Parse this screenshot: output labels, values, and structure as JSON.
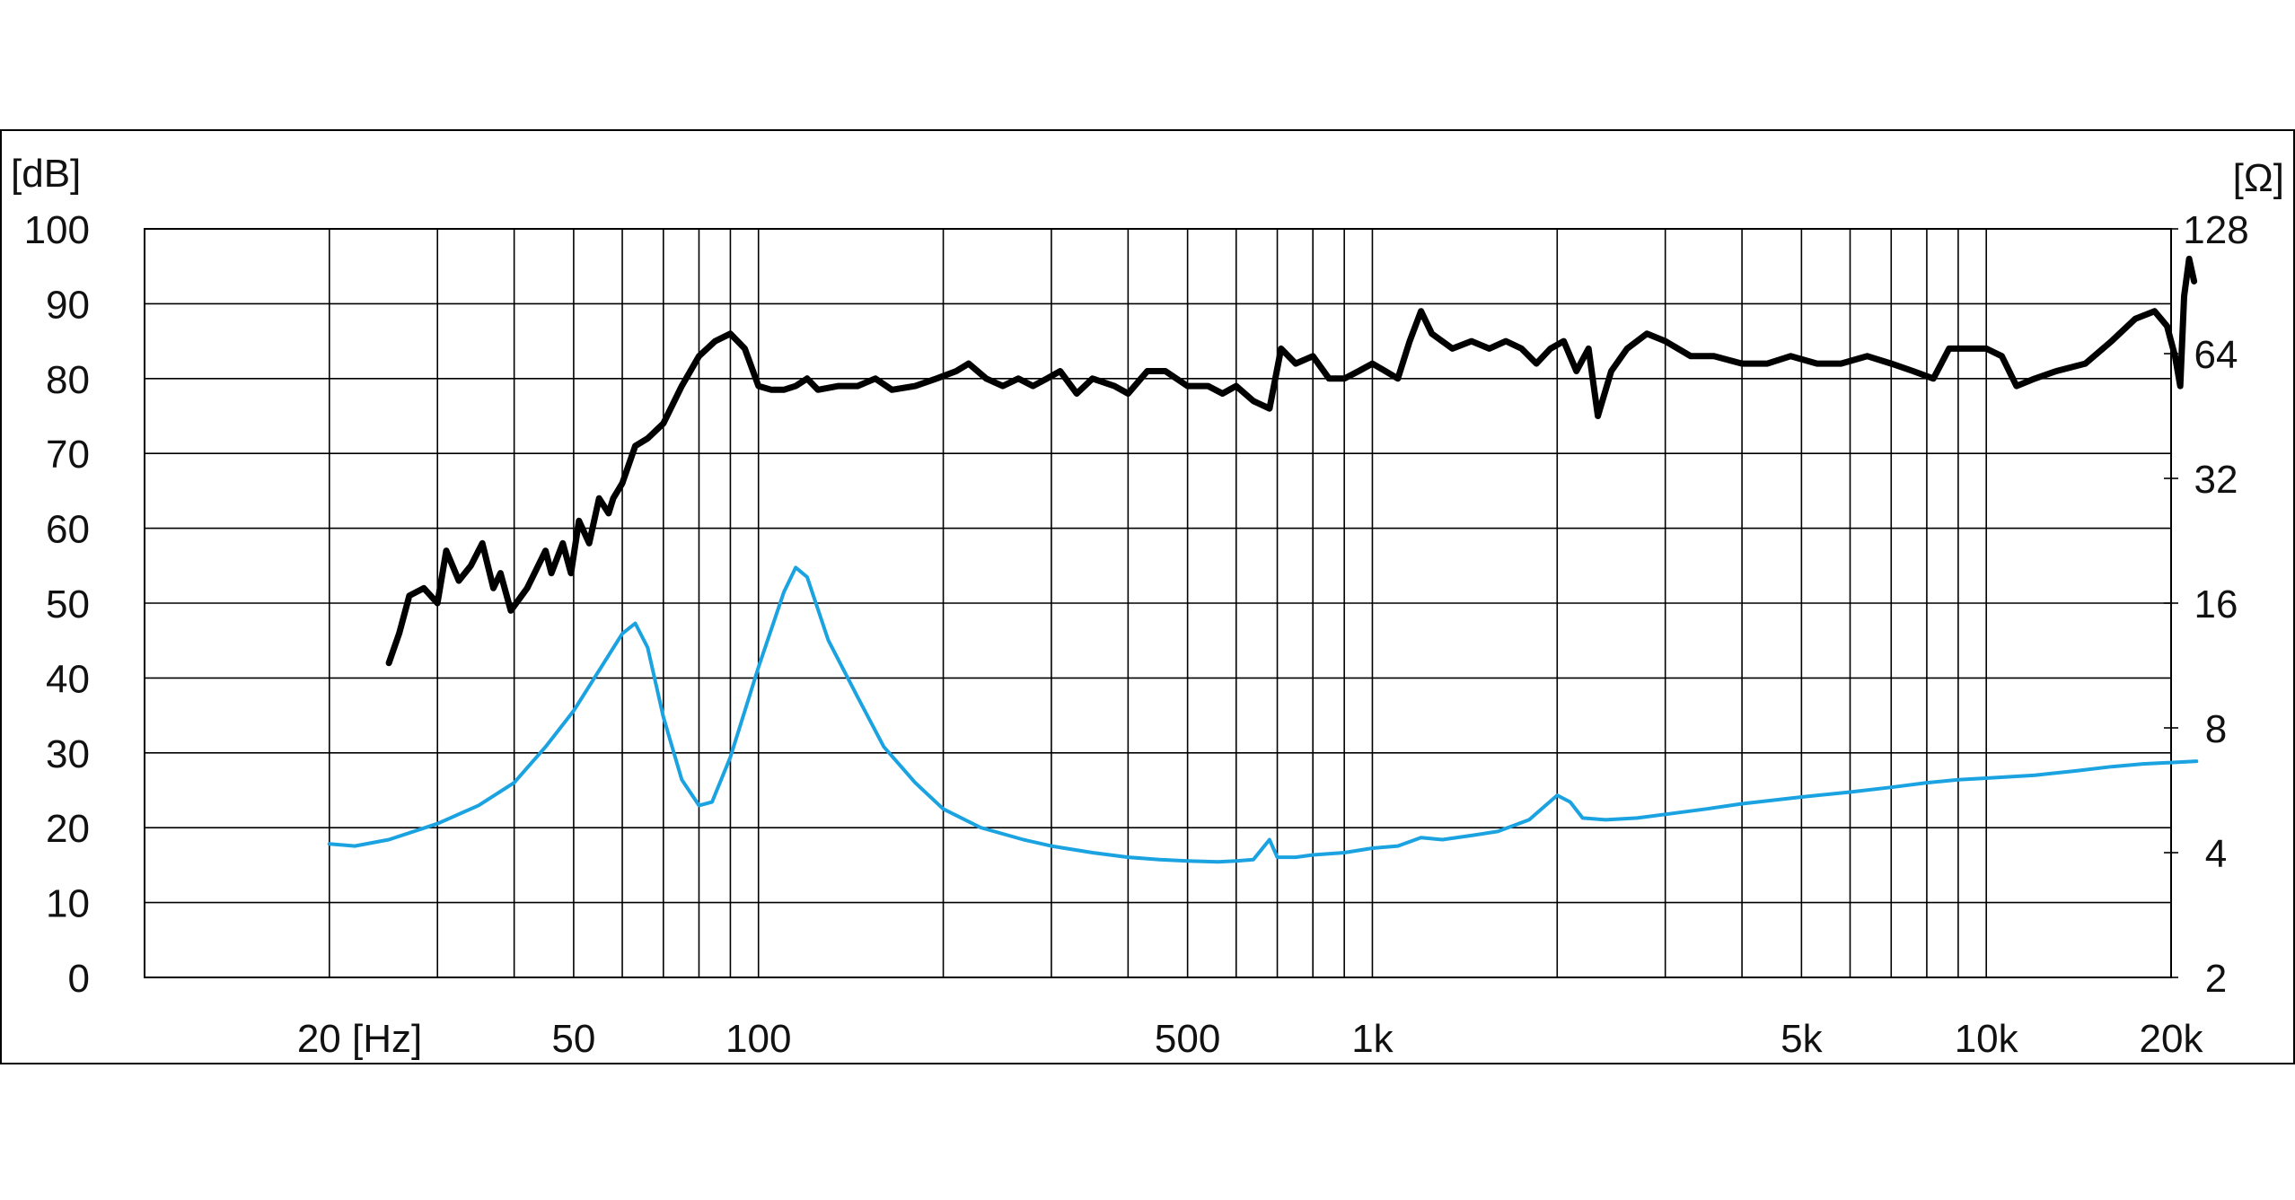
{
  "chart_data": {
    "type": "line",
    "x_scale": "log",
    "xlim_hz": [
      10,
      20000
    ],
    "y_left_unit": "[dB]",
    "y_left_range": [
      0,
      100
    ],
    "y_left_ticks": [
      "0",
      "10",
      "20",
      "30",
      "40",
      "50",
      "60",
      "70",
      "80",
      "90",
      "100"
    ],
    "y_right_unit": "[Ω]",
    "y_right_scale": "log2",
    "y_right_range": [
      2,
      128
    ],
    "y_right_ticks": [
      "2",
      "4",
      "8",
      "16",
      "32",
      "64",
      "128"
    ],
    "x_ticks": [
      {
        "hz": 20,
        "label": "20 [Hz]"
      },
      {
        "hz": 50,
        "label": "50"
      },
      {
        "hz": 100,
        "label": "100"
      },
      {
        "hz": 500,
        "label": "500"
      },
      {
        "hz": 1000,
        "label": "1k"
      },
      {
        "hz": 5000,
        "label": "5k"
      },
      {
        "hz": 10000,
        "label": "10k"
      },
      {
        "hz": 20000,
        "label": "20k"
      }
    ],
    "grid": true,
    "colors": {
      "spl": "#000000",
      "impedance": "#1aa3e0",
      "grid": "#000000"
    },
    "series": [
      {
        "axis": "left",
        "color": "#000000",
        "points": [
          [
            25,
            42
          ],
          [
            26,
            46
          ],
          [
            27,
            51
          ],
          [
            28.5,
            52
          ],
          [
            30,
            50
          ],
          [
            31,
            57
          ],
          [
            32.5,
            53
          ],
          [
            34,
            55
          ],
          [
            35.5,
            58
          ],
          [
            37,
            52
          ],
          [
            38,
            54
          ],
          [
            39.5,
            49
          ],
          [
            42,
            52
          ],
          [
            45,
            57
          ],
          [
            46,
            54
          ],
          [
            48,
            58
          ],
          [
            49.5,
            54
          ],
          [
            51,
            61
          ],
          [
            53,
            58
          ],
          [
            55,
            64
          ],
          [
            57,
            62
          ],
          [
            58,
            64
          ],
          [
            60,
            66
          ],
          [
            63,
            71
          ],
          [
            66,
            72
          ],
          [
            70,
            74
          ],
          [
            75,
            79
          ],
          [
            80,
            83
          ],
          [
            85,
            85
          ],
          [
            90,
            86
          ],
          [
            95,
            84
          ],
          [
            100,
            79
          ],
          [
            105,
            78.5
          ],
          [
            110,
            78.5
          ],
          [
            115,
            79
          ],
          [
            120,
            80
          ],
          [
            125,
            78.5
          ],
          [
            135,
            79
          ],
          [
            145,
            79
          ],
          [
            155,
            80
          ],
          [
            165,
            78.5
          ],
          [
            180,
            79
          ],
          [
            195,
            80
          ],
          [
            210,
            81
          ],
          [
            220,
            82
          ],
          [
            235,
            80
          ],
          [
            250,
            79
          ],
          [
            265,
            80
          ],
          [
            280,
            79
          ],
          [
            295,
            80
          ],
          [
            310,
            81
          ],
          [
            330,
            78
          ],
          [
            350,
            80
          ],
          [
            380,
            79
          ],
          [
            400,
            78
          ],
          [
            430,
            81
          ],
          [
            460,
            81
          ],
          [
            500,
            79
          ],
          [
            540,
            79
          ],
          [
            570,
            78
          ],
          [
            600,
            79
          ],
          [
            640,
            77
          ],
          [
            680,
            76
          ],
          [
            710,
            84
          ],
          [
            750,
            82
          ],
          [
            800,
            83
          ],
          [
            850,
            80
          ],
          [
            900,
            80
          ],
          [
            950,
            81
          ],
          [
            1000,
            82
          ],
          [
            1050,
            81
          ],
          [
            1100,
            80
          ],
          [
            1150,
            85
          ],
          [
            1200,
            89
          ],
          [
            1250,
            86
          ],
          [
            1350,
            84
          ],
          [
            1450,
            85
          ],
          [
            1550,
            84
          ],
          [
            1650,
            85
          ],
          [
            1750,
            84
          ],
          [
            1850,
            82
          ],
          [
            1950,
            84
          ],
          [
            2050,
            85
          ],
          [
            2150,
            81
          ],
          [
            2250,
            84
          ],
          [
            2330,
            75
          ],
          [
            2450,
            81
          ],
          [
            2600,
            84
          ],
          [
            2800,
            86
          ],
          [
            3000,
            85
          ],
          [
            3300,
            83
          ],
          [
            3600,
            83
          ],
          [
            4000,
            82
          ],
          [
            4400,
            82
          ],
          [
            4800,
            83
          ],
          [
            5300,
            82
          ],
          [
            5800,
            82
          ],
          [
            6400,
            83
          ],
          [
            7000,
            82
          ],
          [
            7600,
            81
          ],
          [
            8200,
            80
          ],
          [
            8700,
            84
          ],
          [
            9300,
            84
          ],
          [
            10000,
            84
          ],
          [
            10600,
            83
          ],
          [
            11200,
            79
          ],
          [
            12000,
            80
          ],
          [
            13000,
            81
          ],
          [
            14500,
            82
          ],
          [
            16000,
            85
          ],
          [
            17500,
            88
          ],
          [
            18800,
            89
          ],
          [
            19700,
            87
          ],
          [
            20300,
            83
          ],
          [
            20700,
            79
          ],
          [
            21000,
            91
          ],
          [
            21400,
            96
          ],
          [
            21800,
            93
          ]
        ]
      },
      {
        "axis": "right",
        "color": "#1aa3e0",
        "points": [
          [
            20,
            4.2
          ],
          [
            22,
            4.15
          ],
          [
            25,
            4.3
          ],
          [
            30,
            4.7
          ],
          [
            35,
            5.2
          ],
          [
            40,
            5.9
          ],
          [
            45,
            7.2
          ],
          [
            50,
            8.8
          ],
          [
            55,
            11
          ],
          [
            60,
            13.5
          ],
          [
            63,
            14.3
          ],
          [
            66,
            12.5
          ],
          [
            70,
            8.5
          ],
          [
            75,
            6.0
          ],
          [
            80,
            5.2
          ],
          [
            84,
            5.3
          ],
          [
            90,
            6.8
          ],
          [
            100,
            11.2
          ],
          [
            110,
            17
          ],
          [
            115,
            19.5
          ],
          [
            120,
            18.5
          ],
          [
            130,
            13
          ],
          [
            145,
            9.5
          ],
          [
            160,
            7.2
          ],
          [
            180,
            5.9
          ],
          [
            200,
            5.1
          ],
          [
            230,
            4.6
          ],
          [
            270,
            4.3
          ],
          [
            300,
            4.15
          ],
          [
            350,
            4.0
          ],
          [
            400,
            3.9
          ],
          [
            450,
            3.85
          ],
          [
            500,
            3.82
          ],
          [
            560,
            3.8
          ],
          [
            600,
            3.82
          ],
          [
            640,
            3.85
          ],
          [
            680,
            4.3
          ],
          [
            700,
            3.9
          ],
          [
            750,
            3.9
          ],
          [
            800,
            3.95
          ],
          [
            900,
            4.0
          ],
          [
            1000,
            4.1
          ],
          [
            1100,
            4.15
          ],
          [
            1200,
            4.35
          ],
          [
            1300,
            4.3
          ],
          [
            1450,
            4.4
          ],
          [
            1600,
            4.5
          ],
          [
            1800,
            4.8
          ],
          [
            2000,
            5.5
          ],
          [
            2100,
            5.3
          ],
          [
            2200,
            4.85
          ],
          [
            2400,
            4.8
          ],
          [
            2700,
            4.85
          ],
          [
            3000,
            4.95
          ],
          [
            3500,
            5.1
          ],
          [
            4000,
            5.25
          ],
          [
            5000,
            5.45
          ],
          [
            6000,
            5.6
          ],
          [
            7000,
            5.75
          ],
          [
            8000,
            5.9
          ],
          [
            9000,
            6.0
          ],
          [
            10000,
            6.05
          ],
          [
            12000,
            6.15
          ],
          [
            14000,
            6.3
          ],
          [
            16000,
            6.45
          ],
          [
            18000,
            6.55
          ],
          [
            20000,
            6.6
          ],
          [
            22000,
            6.65
          ]
        ]
      }
    ]
  }
}
